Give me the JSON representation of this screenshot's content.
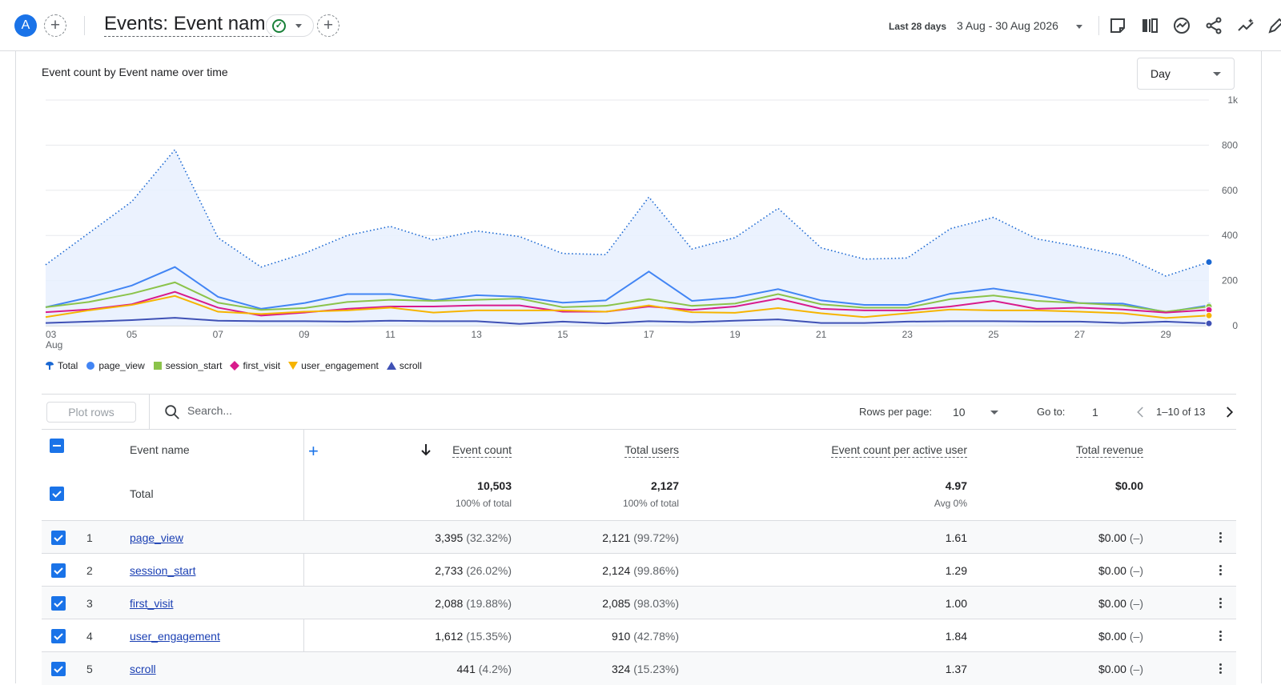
{
  "header": {
    "avatar_letter": "A",
    "title": "Events: Event name",
    "date_range_label": "Last 28 days",
    "date_range_value": "3 Aug - 30 Aug 2026",
    "icons": [
      "compare-icon",
      "customize-report-icon",
      "insights-icon",
      "share-icon",
      "trend-icon",
      "edit-icon"
    ]
  },
  "chart": {
    "title": "Event count by Event name over time",
    "granularity": "Day"
  },
  "chart_data": {
    "type": "line",
    "title": "Event count by Event name over time",
    "x": [
      "03 Aug",
      "04",
      "05",
      "06",
      "07",
      "08",
      "09",
      "10",
      "11",
      "12",
      "13",
      "14",
      "15",
      "16",
      "17",
      "18",
      "19",
      "20",
      "21",
      "22",
      "23",
      "24",
      "25",
      "26",
      "27",
      "28",
      "29",
      "30"
    ],
    "x_tick_labels": [
      "03",
      "05",
      "07",
      "09",
      "11",
      "13",
      "15",
      "17",
      "19",
      "21",
      "23",
      "25",
      "27",
      "29"
    ],
    "x_tick_sub": "Aug",
    "y_ticks": [
      "0",
      "200",
      "400",
      "600",
      "800",
      "1k"
    ],
    "ylim": [
      0,
      1000
    ],
    "grid": true,
    "legend_position": "bottom-left",
    "series": [
      {
        "name": "Total",
        "color": "#1967d2",
        "style": "dotted-area",
        "values": [
          270,
          410,
          550,
          780,
          390,
          260,
          320,
          400,
          440,
          380,
          420,
          395,
          320,
          315,
          570,
          340,
          390,
          520,
          345,
          295,
          300,
          430,
          480,
          385,
          350,
          310,
          220,
          282
        ]
      },
      {
        "name": "page_view",
        "color": "#4285f4",
        "values": [
          82,
          125,
          178,
          260,
          128,
          75,
          100,
          140,
          140,
          112,
          135,
          128,
          102,
          112,
          240,
          110,
          125,
          162,
          112,
          92,
          92,
          142,
          165,
          135,
          100,
          98,
          60,
          90
        ]
      },
      {
        "name": "session_start",
        "color": "#8bc34a",
        "values": [
          82,
          105,
          142,
          192,
          102,
          70,
          78,
          105,
          115,
          110,
          115,
          120,
          82,
          88,
          118,
          88,
          98,
          140,
          95,
          80,
          80,
          118,
          134,
          110,
          100,
          90,
          62,
          85
        ]
      },
      {
        "name": "first_visit",
        "color": "#d81b8c",
        "values": [
          60,
          72,
          95,
          150,
          80,
          45,
          58,
          75,
          85,
          85,
          90,
          90,
          62,
          62,
          85,
          70,
          85,
          120,
          75,
          68,
          68,
          85,
          110,
          75,
          80,
          72,
          58,
          70
        ]
      },
      {
        "name": "user_engagement",
        "color": "#f6b400",
        "values": [
          38,
          68,
          92,
          132,
          62,
          52,
          62,
          68,
          80,
          58,
          68,
          68,
          68,
          62,
          90,
          60,
          57,
          78,
          55,
          38,
          55,
          72,
          68,
          68,
          62,
          55,
          34,
          45
        ]
      },
      {
        "name": "scroll",
        "color": "#3f51b5",
        "values": [
          12,
          18,
          25,
          35,
          22,
          20,
          20,
          18,
          22,
          20,
          20,
          8,
          18,
          10,
          20,
          16,
          22,
          28,
          12,
          12,
          18,
          20,
          20,
          18,
          18,
          12,
          18,
          10
        ]
      }
    ]
  },
  "legend": [
    {
      "label": "Total",
      "color": "#1967d2",
      "shape": "pin"
    },
    {
      "label": "page_view",
      "color": "#4285f4",
      "shape": "circle"
    },
    {
      "label": "session_start",
      "color": "#8bc34a",
      "shape": "square"
    },
    {
      "label": "first_visit",
      "color": "#d81b8c",
      "shape": "diamond"
    },
    {
      "label": "user_engagement",
      "color": "#f6b400",
      "shape": "triangle-down"
    },
    {
      "label": "scroll",
      "color": "#3f51b5",
      "shape": "triangle-up"
    }
  ],
  "toolbar": {
    "plot_rows_label": "Plot rows",
    "search_placeholder": "Search...",
    "rows_per_page_label": "Rows per page:",
    "rows_per_page_value": "10",
    "goto_label": "Go to:",
    "goto_value": "1",
    "page_range": "1–10 of 13"
  },
  "table": {
    "dimension_header": "Event name",
    "columns": [
      "Event count",
      "Total users",
      "Event count per active user",
      "Total revenue"
    ],
    "total": {
      "label": "Total",
      "values": [
        "10,503",
        "2,127",
        "4.97",
        "$0.00"
      ],
      "subs": [
        "100% of total",
        "100% of total",
        "Avg 0%",
        ""
      ]
    },
    "rows": [
      {
        "idx": "1",
        "name": "page_view",
        "event_count": "3,395",
        "event_pct": "(32.32%)",
        "users": "2,121",
        "users_pct": "(99.72%)",
        "per_user": "1.61",
        "revenue": "$0.00",
        "revenue_pct": "(–)"
      },
      {
        "idx": "2",
        "name": "session_start",
        "event_count": "2,733",
        "event_pct": "(26.02%)",
        "users": "2,124",
        "users_pct": "(99.86%)",
        "per_user": "1.29",
        "revenue": "$0.00",
        "revenue_pct": "(–)"
      },
      {
        "idx": "3",
        "name": "first_visit",
        "event_count": "2,088",
        "event_pct": "(19.88%)",
        "users": "2,085",
        "users_pct": "(98.03%)",
        "per_user": "1.00",
        "revenue": "$0.00",
        "revenue_pct": "(–)"
      },
      {
        "idx": "4",
        "name": "user_engagement",
        "event_count": "1,612",
        "event_pct": "(15.35%)",
        "users": "910",
        "users_pct": "(42.78%)",
        "per_user": "1.84",
        "revenue": "$0.00",
        "revenue_pct": "(–)"
      },
      {
        "idx": "5",
        "name": "scroll",
        "event_count": "441",
        "event_pct": "(4.2%)",
        "users": "324",
        "users_pct": "(15.23%)",
        "per_user": "1.37",
        "revenue": "$0.00",
        "revenue_pct": "(–)"
      }
    ]
  }
}
